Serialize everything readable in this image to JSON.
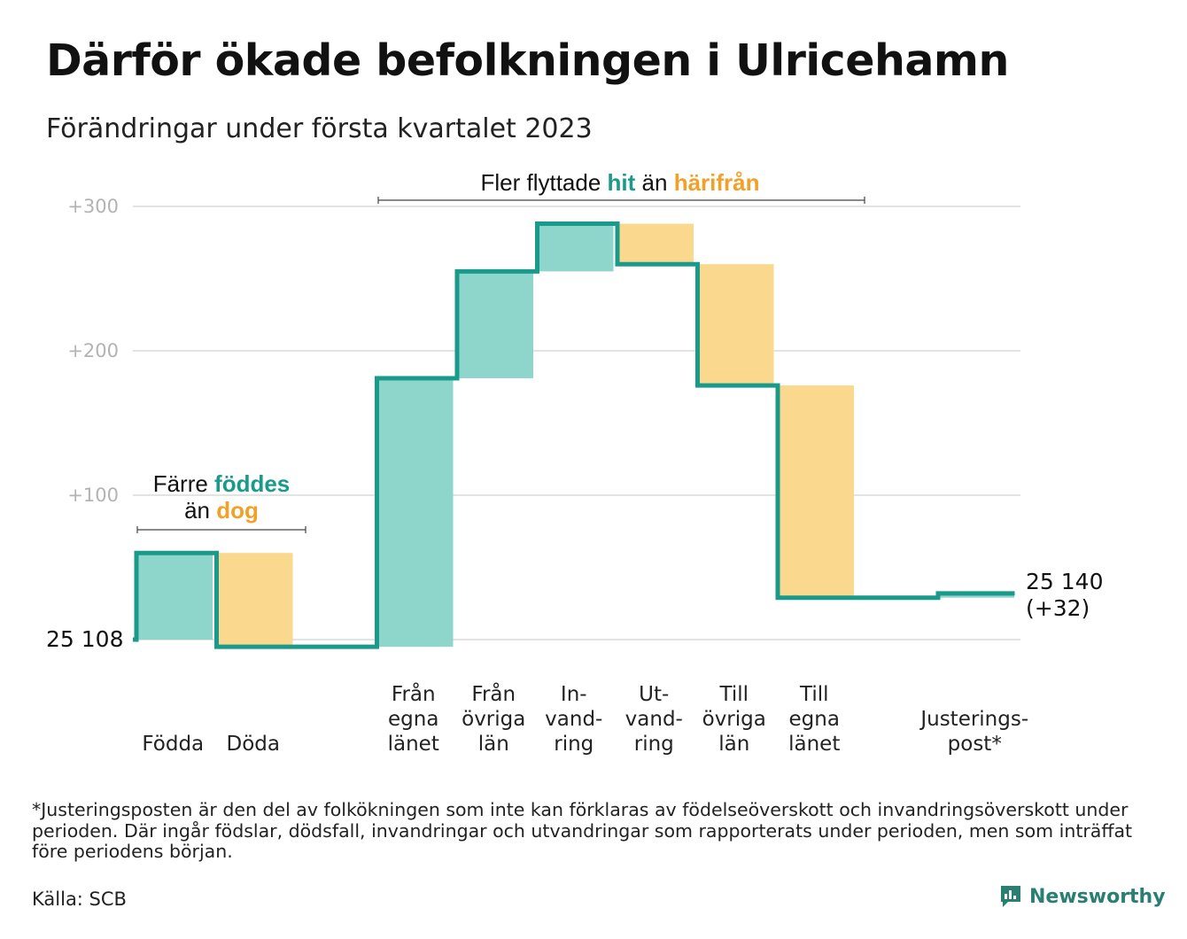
{
  "header": {
    "title": "Därför ökade befolkningen i Ulricehamn",
    "subtitle": "Förändringar under första kvartalet 2023"
  },
  "colors": {
    "increase_fill": "#8ed5cc",
    "decrease_fill": "#fad88e",
    "step_line": "#1a9a8a",
    "highlight_green": "#1a9a8a",
    "highlight_orange": "#f2a027",
    "gridline": "#e3e3e3",
    "tick_text": "#b3b3b3"
  },
  "chart_data": {
    "type": "waterfall",
    "baseline_label": "25 108",
    "end_label_total": "25 140",
    "end_label_change": "(+32)",
    "y_ticks": [
      {
        "value": 100,
        "label": "+100"
      },
      {
        "value": 200,
        "label": "+200"
      },
      {
        "value": 300,
        "label": "+300"
      }
    ],
    "ylim": [
      -10,
      310
    ],
    "grid": true,
    "steps": [
      {
        "lines": [
          "Födda"
        ],
        "kind": "increase",
        "start": 0,
        "end": 60
      },
      {
        "lines": [
          "Döda"
        ],
        "kind": "decrease",
        "start": 60,
        "end": -5
      },
      {
        "lines": [],
        "kind": "gap",
        "start": -5,
        "end": -5
      },
      {
        "lines": [
          "Från",
          "egna",
          "länet"
        ],
        "kind": "increase",
        "start": -5,
        "end": 181
      },
      {
        "lines": [
          "Från",
          "övriga",
          "län"
        ],
        "kind": "increase",
        "start": 181,
        "end": 255
      },
      {
        "lines": [
          "In-",
          "vand-",
          "ring"
        ],
        "kind": "increase",
        "start": 255,
        "end": 288
      },
      {
        "lines": [
          "Ut-",
          "vand-",
          "ring"
        ],
        "kind": "decrease",
        "start": 288,
        "end": 260
      },
      {
        "lines": [
          "Till",
          "övriga",
          "län"
        ],
        "kind": "decrease",
        "start": 260,
        "end": 176
      },
      {
        "lines": [
          "Till",
          "egna",
          "länet"
        ],
        "kind": "decrease",
        "start": 176,
        "end": 29
      },
      {
        "lines": [],
        "kind": "gap",
        "start": 29,
        "end": 29
      },
      {
        "lines": [
          "Justerings-",
          "post*"
        ],
        "kind": "increase",
        "start": 29,
        "end": 32
      }
    ],
    "annotations": {
      "births_deaths": {
        "line1_plain": "Färre ",
        "line1_green": "föddes",
        "line2_plain": "än ",
        "line2_orange": "dog"
      },
      "migration": {
        "plain1": "Fler flyttade ",
        "green": "hit",
        "plain2": " än ",
        "orange": "härifrån"
      }
    }
  },
  "footnote": "*Justeringsposten är den del av folkökningen som inte kan förklaras av födelseöverskott och invandringsöverskott under perioden. Där ingår födslar, dödsfall, invandringar och utvandringar som rapporterats under perioden, men som inträffat före periodens början.",
  "source": "Källa: SCB",
  "brand": {
    "name": "Newsworthy",
    "icon": "newsworthy-logo-icon"
  }
}
